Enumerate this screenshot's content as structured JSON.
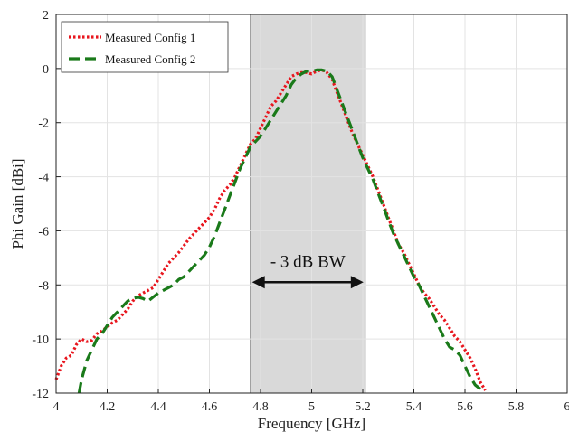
{
  "chart_data": {
    "type": "line",
    "xlabel": "Frequency [GHz]",
    "ylabel": "Phi Gain [dBi]",
    "xlim": [
      4,
      6
    ],
    "ylim": [
      -12,
      2
    ],
    "xticks": [
      4,
      4.2,
      4.4,
      4.6,
      4.8,
      5,
      5.2,
      5.4,
      5.6,
      5.8,
      6
    ],
    "yticks": [
      2,
      0,
      -2,
      -4,
      -6,
      -8,
      -10,
      -12
    ],
    "xtick_labels": [
      "4",
      "4.2",
      "4.4",
      "4.6",
      "4.8",
      "5",
      "5.2",
      "5.4",
      "5.6",
      "5.8",
      "6"
    ],
    "ytick_labels": [
      "2",
      "0",
      "-2",
      "-4",
      "-6",
      "-8",
      "-10",
      "-12"
    ],
    "grid": true,
    "legend_position": "top-left",
    "shaded_band": {
      "x_start": 4.76,
      "x_end": 5.21,
      "color": "#d9d9d9"
    },
    "annotation": {
      "text": "- 3 dB BW",
      "x_start": 4.76,
      "x_end": 5.21,
      "y": -7.9
    },
    "series": [
      {
        "name": "Measured Config 1",
        "color": "#e8161e",
        "style": "dotted",
        "x": [
          4.0,
          4.02,
          4.04,
          4.06,
          4.08,
          4.1,
          4.12,
          4.14,
          4.16,
          4.18,
          4.2,
          4.22,
          4.24,
          4.26,
          4.28,
          4.3,
          4.32,
          4.34,
          4.36,
          4.38,
          4.4,
          4.42,
          4.44,
          4.46,
          4.48,
          4.5,
          4.52,
          4.54,
          4.56,
          4.58,
          4.6,
          4.62,
          4.64,
          4.66,
          4.68,
          4.7,
          4.72,
          4.74,
          4.76,
          4.78,
          4.8,
          4.82,
          4.84,
          4.86,
          4.88,
          4.9,
          4.92,
          4.94,
          4.96,
          4.98,
          5.0,
          5.02,
          5.04,
          5.06,
          5.08,
          5.1,
          5.12,
          5.14,
          5.16,
          5.18,
          5.2,
          5.22,
          5.24,
          5.26,
          5.28,
          5.3,
          5.32,
          5.34,
          5.36,
          5.38,
          5.4,
          5.42,
          5.44,
          5.46,
          5.48,
          5.5,
          5.52,
          5.54,
          5.56,
          5.58,
          5.6,
          5.62,
          5.64,
          5.66,
          5.68
        ],
        "values": [
          -11.5,
          -11.0,
          -10.7,
          -10.6,
          -10.2,
          -10.0,
          -10.1,
          -10.05,
          -9.8,
          -9.7,
          -9.55,
          -9.4,
          -9.3,
          -9.1,
          -8.9,
          -8.6,
          -8.4,
          -8.3,
          -8.2,
          -8.1,
          -7.8,
          -7.5,
          -7.2,
          -7.0,
          -6.8,
          -6.55,
          -6.3,
          -6.1,
          -5.9,
          -5.7,
          -5.5,
          -5.2,
          -4.8,
          -4.5,
          -4.3,
          -4.0,
          -3.6,
          -3.2,
          -2.8,
          -2.6,
          -2.2,
          -1.8,
          -1.4,
          -1.2,
          -0.9,
          -0.6,
          -0.3,
          -0.2,
          -0.15,
          -0.15,
          -0.2,
          -0.1,
          -0.05,
          -0.15,
          -0.4,
          -0.9,
          -1.4,
          -1.9,
          -2.4,
          -2.8,
          -3.2,
          -3.6,
          -4.0,
          -4.5,
          -5.0,
          -5.5,
          -6.0,
          -6.5,
          -6.8,
          -7.2,
          -7.6,
          -8.0,
          -8.3,
          -8.5,
          -8.8,
          -9.1,
          -9.3,
          -9.6,
          -9.9,
          -10.1,
          -10.4,
          -10.7,
          -11.1,
          -11.6,
          -11.9
        ]
      },
      {
        "name": "Measured Config 2",
        "color": "#1a7a1a",
        "style": "dashed",
        "x": [
          4.09,
          4.1,
          4.12,
          4.14,
          4.16,
          4.18,
          4.2,
          4.22,
          4.24,
          4.26,
          4.28,
          4.3,
          4.32,
          4.34,
          4.36,
          4.38,
          4.4,
          4.42,
          4.44,
          4.46,
          4.48,
          4.5,
          4.52,
          4.54,
          4.56,
          4.58,
          4.6,
          4.62,
          4.64,
          4.66,
          4.68,
          4.7,
          4.72,
          4.74,
          4.76,
          4.78,
          4.8,
          4.82,
          4.84,
          4.86,
          4.88,
          4.9,
          4.92,
          4.94,
          4.96,
          4.98,
          5.0,
          5.02,
          5.04,
          5.06,
          5.08,
          5.1,
          5.12,
          5.14,
          5.16,
          5.18,
          5.2,
          5.22,
          5.24,
          5.26,
          5.28,
          5.3,
          5.32,
          5.34,
          5.36,
          5.38,
          5.4,
          5.42,
          5.44,
          5.46,
          5.48,
          5.5,
          5.52,
          5.54,
          5.56,
          5.58,
          5.6,
          5.62,
          5.64,
          5.66,
          5.68
        ],
        "values": [
          -12.0,
          -11.5,
          -10.8,
          -10.4,
          -10.0,
          -9.8,
          -9.5,
          -9.2,
          -9.0,
          -8.8,
          -8.6,
          -8.5,
          -8.45,
          -8.5,
          -8.6,
          -8.45,
          -8.3,
          -8.2,
          -8.1,
          -8.0,
          -7.8,
          -7.7,
          -7.5,
          -7.3,
          -7.1,
          -6.9,
          -6.6,
          -6.2,
          -5.7,
          -5.2,
          -4.7,
          -4.2,
          -3.7,
          -3.3,
          -2.9,
          -2.7,
          -2.5,
          -2.2,
          -1.9,
          -1.6,
          -1.3,
          -1.0,
          -0.6,
          -0.35,
          -0.2,
          -0.1,
          -0.1,
          -0.05,
          -0.05,
          -0.1,
          -0.3,
          -0.8,
          -1.3,
          -1.8,
          -2.3,
          -2.8,
          -3.3,
          -3.7,
          -4.1,
          -4.6,
          -5.1,
          -5.6,
          -6.1,
          -6.5,
          -6.9,
          -7.3,
          -7.7,
          -8.0,
          -8.4,
          -8.8,
          -9.2,
          -9.6,
          -10.0,
          -10.3,
          -10.4,
          -10.6,
          -11.0,
          -11.4,
          -11.7,
          -11.85,
          -11.9
        ]
      }
    ]
  }
}
